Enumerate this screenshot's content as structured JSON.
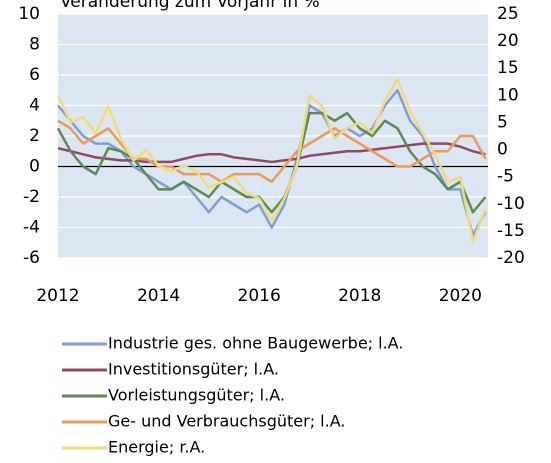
{
  "chart_data": {
    "type": "line",
    "title": "Veränderung zum Vorjahr in %",
    "x": [
      2012,
      2012.25,
      2012.5,
      2012.75,
      2013,
      2013.25,
      2013.5,
      2013.75,
      2014,
      2014.25,
      2014.5,
      2014.75,
      2015,
      2015.25,
      2015.5,
      2015.75,
      2016,
      2016.25,
      2016.5,
      2016.75,
      2017,
      2017.25,
      2017.5,
      2017.75,
      2018,
      2018.25,
      2018.5,
      2018.75,
      2019,
      2019.25,
      2019.5,
      2019.75,
      2020,
      2020.25,
      2020.5
    ],
    "xlim": [
      2012,
      2020.55
    ],
    "xticks": [
      2012,
      2014,
      2016,
      2018,
      2020
    ],
    "ylim": [
      -6,
      10
    ],
    "yticks": [
      10,
      8,
      6,
      4,
      2,
      0,
      -2,
      -4,
      -6
    ],
    "y2lim": [
      -20,
      25
    ],
    "y2ticks": [
      25,
      20,
      15,
      10,
      5,
      0,
      -5,
      -10,
      -15,
      -20
    ],
    "grid": true,
    "series": [
      {
        "name": "Industrie ges. ohne Baugewerbe;  l.A.",
        "color": "#7f9fd4",
        "values": [
          4,
          3,
          2,
          1.5,
          1.5,
          1,
          0,
          -0.5,
          -1,
          -1.5,
          -1,
          -2,
          -3,
          -2,
          -2.5,
          -3,
          -2.5,
          -4,
          -2.5,
          0.5,
          4,
          3.5,
          2,
          2.5,
          2,
          2.5,
          4,
          5,
          3,
          2,
          0,
          -1.5,
          -1.5,
          -4.5,
          -3
        ]
      },
      {
        "name": "Investitionsgüter; l.A.",
        "color": "#8e4a62",
        "values": [
          1.2,
          1.0,
          0.8,
          0.6,
          0.5,
          0.4,
          0.4,
          0.3,
          0.3,
          0.3,
          0.5,
          0.7,
          0.8,
          0.8,
          0.6,
          0.5,
          0.4,
          0.3,
          0.4,
          0.5,
          0.7,
          0.8,
          0.9,
          1.0,
          1.0,
          1.1,
          1.2,
          1.3,
          1.4,
          1.5,
          1.5,
          1.5,
          1.3,
          1.0,
          0.8
        ]
      },
      {
        "name": "Vorleistungsgüter; l.A.",
        "color": "#5e8a55",
        "values": [
          2.5,
          1,
          0,
          -0.5,
          1.2,
          1,
          0.5,
          -0.5,
          -1.5,
          -1.5,
          -1,
          -1.5,
          -2,
          -1,
          -1.5,
          -2,
          -2,
          -3,
          -2,
          0,
          3.5,
          3.5,
          3,
          3.5,
          2.5,
          2,
          3,
          2.5,
          1,
          0,
          -0.5,
          -1.5,
          -1,
          -3,
          -2
        ]
      },
      {
        "name": "Ge- und Verbrauchsgüter; l.A.",
        "color": "#eb9a5e",
        "values": [
          3,
          2.5,
          1.5,
          2,
          2.5,
          1.5,
          0.5,
          0.5,
          0,
          0,
          -0.5,
          -0.5,
          -0.5,
          -1,
          -0.5,
          -0.5,
          -0.5,
          -1,
          0,
          1,
          1.5,
          2,
          2.5,
          2,
          1.5,
          1,
          0.5,
          0,
          0,
          0.5,
          1,
          1,
          2,
          2,
          0.5
        ]
      },
      {
        "name": "Energie; r.A.",
        "color": "#f2db7a",
        "axis": "y2",
        "values": [
          10,
          5,
          6,
          3,
          8,
          2,
          -2,
          0,
          -3,
          -4,
          -3,
          -4,
          -7,
          -6,
          -5,
          -8,
          -9,
          -13,
          -9,
          -3,
          10,
          8,
          2,
          4,
          5,
          3,
          9,
          13,
          7,
          3,
          -1,
          -6,
          -5,
          -17,
          -11
        ]
      }
    ]
  }
}
